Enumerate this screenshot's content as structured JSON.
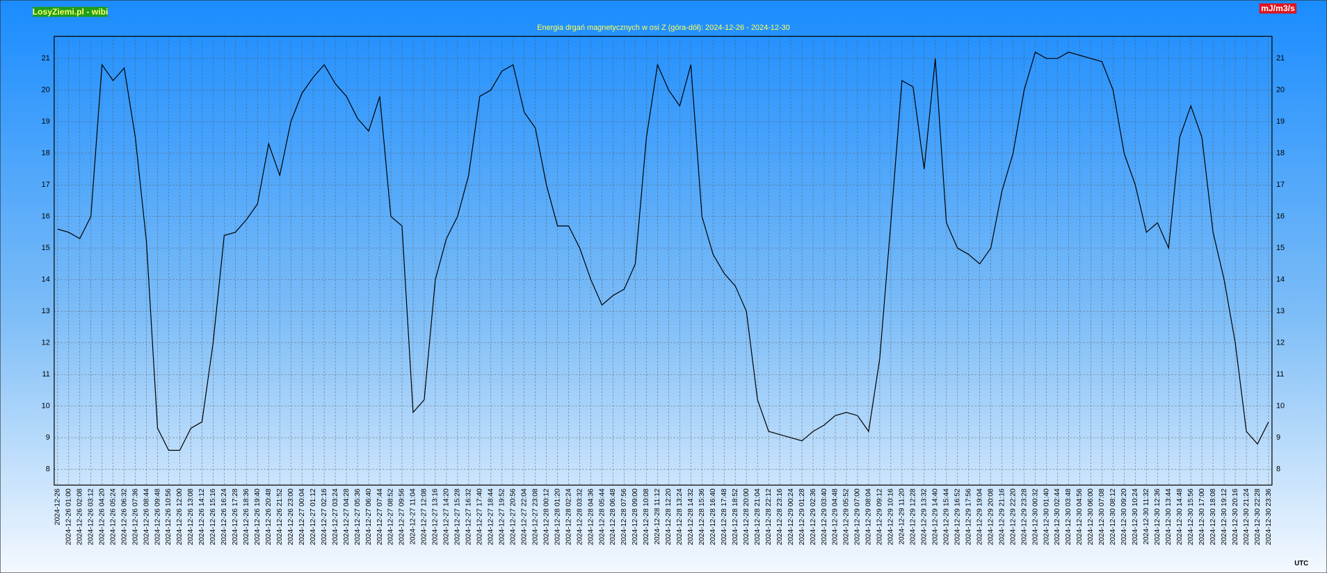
{
  "chart_data": {
    "type": "line",
    "brand": "LosyZiemi.pl - wibi",
    "unit": "mJ/m3/s",
    "timezone": "UTC",
    "title": "Energia drgań magnetycznych w osi Z (góra-dół): 2024-12-26 - 2024-12-30",
    "x": [
      "2024-12-26",
      "2024-12-26 01:00",
      "2024-12-26 02:08",
      "2024-12-26 03:12",
      "2024-12-26 04:20",
      "2024-12-26 05:24",
      "2024-12-26 06:32",
      "2024-12-26 07:36",
      "2024-12-26 08:44",
      "2024-12-26 09:48",
      "2024-12-26 10:56",
      "2024-12-26 12:00",
      "2024-12-26 13:08",
      "2024-12-26 14:12",
      "2024-12-26 15:16",
      "2024-12-26 16:24",
      "2024-12-26 17:28",
      "2024-12-26 18:36",
      "2024-12-26 19:40",
      "2024-12-26 20:48",
      "2024-12-26 21:52",
      "2024-12-26 23:00",
      "2024-12-27 00:04",
      "2024-12-27 01:12",
      "2024-12-27 02:16",
      "2024-12-27 03:24",
      "2024-12-27 04:28",
      "2024-12-27 05:36",
      "2024-12-27 06:40",
      "2024-12-27 07:44",
      "2024-12-27 08:52",
      "2024-12-27 09:56",
      "2024-12-27 11:04",
      "2024-12-27 12:08",
      "2024-12-27 13:16",
      "2024-12-27 14:20",
      "2024-12-27 15:28",
      "2024-12-27 16:32",
      "2024-12-27 17:40",
      "2024-12-27 18:44",
      "2024-12-27 19:52",
      "2024-12-27 20:56",
      "2024-12-27 22:04",
      "2024-12-27 23:08",
      "2024-12-28 00:12",
      "2024-12-28 01:20",
      "2024-12-28 02:24",
      "2024-12-28 03:32",
      "2024-12-28 04:36",
      "2024-12-28 05:44",
      "2024-12-28 06:48",
      "2024-12-28 07:56",
      "2024-12-28 09:00",
      "2024-12-28 10:08",
      "2024-12-28 11:12",
      "2024-12-28 12:20",
      "2024-12-28 13:24",
      "2024-12-28 14:32",
      "2024-12-28 15:36",
      "2024-12-28 16:40",
      "2024-12-28 17:48",
      "2024-12-28 18:52",
      "2024-12-28 20:00",
      "2024-12-28 21:04",
      "2024-12-28 22:12",
      "2024-12-28 23:16",
      "2024-12-29 00:24",
      "2024-12-29 01:28",
      "2024-12-29 02:36",
      "2024-12-29 03:40",
      "2024-12-29 04:48",
      "2024-12-29 05:52",
      "2024-12-29 07:00",
      "2024-12-29 08:04",
      "2024-12-29 09:12",
      "2024-12-29 10:16",
      "2024-12-29 11:20",
      "2024-12-29 12:28",
      "2024-12-29 13:32",
      "2024-12-29 14:40",
      "2024-12-29 15:44",
      "2024-12-29 16:52",
      "2024-12-29 17:56",
      "2024-12-29 19:04",
      "2024-12-29 20:08",
      "2024-12-29 21:16",
      "2024-12-29 22:20",
      "2024-12-29 23:28",
      "2024-12-30 00:32",
      "2024-12-30 01:40",
      "2024-12-30 02:44",
      "2024-12-30 03:48",
      "2024-12-30 04:56",
      "2024-12-30 06:00",
      "2024-12-30 07:08",
      "2024-12-30 08:12",
      "2024-12-30 09:20",
      "2024-12-30 10:24",
      "2024-12-30 11:32",
      "2024-12-30 12:36",
      "2024-12-30 13:44",
      "2024-12-30 14:48",
      "2024-12-30 15:56",
      "2024-12-30 17:00",
      "2024-12-30 18:08",
      "2024-12-30 19:12",
      "2024-12-30 20:16",
      "2024-12-30 21:24",
      "2024-12-30 22:28",
      "2024-12-30 23:36"
    ],
    "series": [
      {
        "name": "Energia",
        "color": "#000000",
        "values": [
          15.6,
          15.5,
          15.3,
          16.0,
          20.8,
          20.3,
          20.7,
          18.5,
          15.2,
          9.3,
          8.6,
          8.6,
          9.3,
          9.5,
          12.0,
          15.4,
          15.5,
          15.9,
          16.4,
          18.3,
          17.3,
          19.0,
          19.9,
          20.4,
          20.8,
          20.2,
          19.8,
          19.1,
          18.7,
          19.8,
          16.0,
          15.7,
          9.8,
          10.2,
          14.0,
          15.3,
          16.0,
          17.3,
          19.8,
          20.0,
          20.6,
          20.8,
          19.3,
          18.8,
          17.0,
          15.7,
          15.7,
          15.0,
          14.0,
          13.2,
          13.5,
          13.7,
          14.5,
          18.5,
          20.8,
          20.0,
          19.5,
          20.8,
          16.0,
          14.8,
          14.2,
          13.8,
          13.0,
          10.2,
          9.2,
          9.1,
          9.0,
          8.9,
          9.2,
          9.4,
          9.7,
          9.8,
          9.7,
          9.2,
          11.5,
          15.8,
          20.3,
          20.1,
          17.5,
          21.0,
          15.8,
          15.0,
          14.8,
          14.5,
          15.0,
          16.8,
          18.0,
          20.0,
          21.2,
          21.0,
          21.0,
          21.2,
          21.1,
          21.0,
          20.9,
          20.0,
          18.0,
          17.0,
          15.5,
          15.8,
          15.0,
          18.5,
          19.5,
          18.5,
          15.5,
          14.0,
          12.0,
          9.2,
          8.8,
          9.5
        ]
      }
    ],
    "ylim": [
      7.5,
      21.7
    ],
    "yticks": [
      8,
      9,
      10,
      11,
      12,
      13,
      14,
      15,
      16,
      17,
      18,
      19,
      20,
      21
    ],
    "grid": true
  }
}
